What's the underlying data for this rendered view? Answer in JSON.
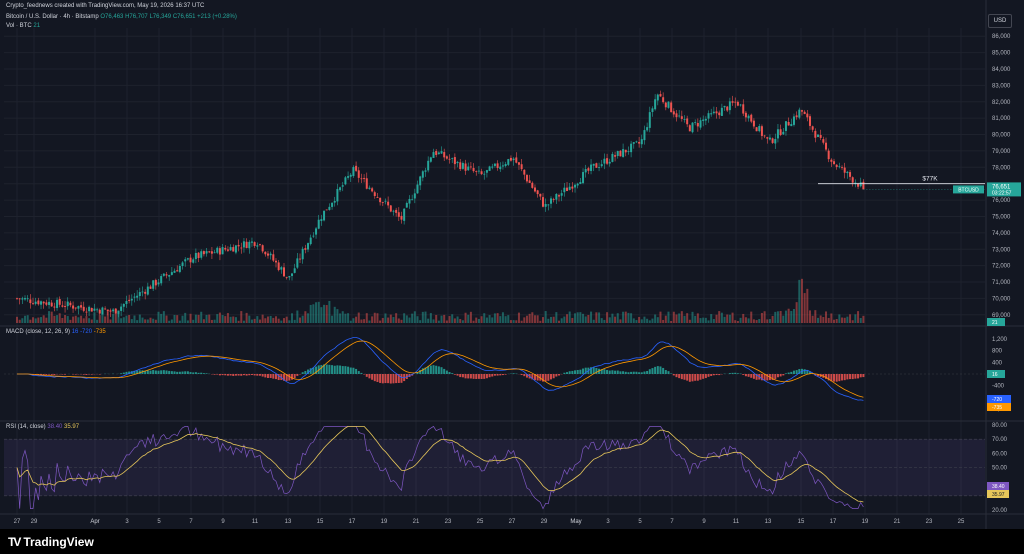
{
  "header": {
    "creator": "Crypto_feednews created with TradingView.com, May 19, 2026 16:37 UTC",
    "symbol": "Bitcoin / U.S. Dollar · 4h · Bitstamp",
    "o": "O76,463",
    "h": "H76,707",
    "l": "L76,349",
    "c": "C76,651",
    "chg": "+213 (+0.28%)",
    "vol_label": "Vol · BTC",
    "vol_value": "21"
  },
  "currency_badge": "USD",
  "price_axis": {
    "ticks": [
      86000,
      85000,
      84000,
      83000,
      82000,
      81000,
      80000,
      79000,
      78000,
      77000,
      76000,
      75000,
      74000,
      73000,
      72000,
      71000,
      70000,
      69000
    ]
  },
  "price_labels": [
    "86,000",
    "85,000",
    "84,000",
    "83,000",
    "82,000",
    "81,000",
    "80,000",
    "79,000",
    "78,000",
    "77,000",
    "76,000",
    "75,000",
    "74,000",
    "73,000",
    "72,000",
    "71,000",
    "70,000",
    "69,000"
  ],
  "annotation": {
    "text": "$77K",
    "price": 77000
  },
  "last_price": {
    "symbol": "BTCUSD",
    "price": "76,651",
    "countdown": "03:22:57",
    "value": 76651
  },
  "volume_badge": "21",
  "macd": {
    "label": "MACD (close, 12, 26, 9)",
    "v1": "16",
    "v2": "-720",
    "v3": "-735",
    "ticks": [
      "1,200",
      "800",
      "400",
      "-400",
      "-1,200"
    ],
    "hist_badge": "16",
    "macd_badge": "-720",
    "signal_badge": "-735"
  },
  "rsi": {
    "label": "RSI (14, close)",
    "v1": "38.40",
    "v2": "35.97",
    "ticks": [
      "80.00",
      "70.00",
      "60.00",
      "50.00",
      "40.00",
      "30.00",
      "20.00"
    ],
    "rsi_badge": "38.40",
    "ma_badge": "35.97"
  },
  "time_axis": [
    "27",
    "29",
    "Apr",
    "3",
    "5",
    "7",
    "9",
    "11",
    "13",
    "15",
    "17",
    "19",
    "21",
    "23",
    "25",
    "27",
    "29",
    "May",
    "3",
    "5",
    "7",
    "9",
    "11",
    "13",
    "15",
    "17",
    "19",
    "21",
    "23",
    "25"
  ],
  "footer": {
    "brand": "TradingView"
  },
  "colors": {
    "up": "#26a69a",
    "down": "#ef5350",
    "macd_line": "#2962ff",
    "signal_line": "#ff9800",
    "rsi_line": "#7e57c2",
    "rsi_ma": "#e6c65a"
  },
  "chart_data": {
    "type": "candlestick",
    "timeframe": "4h",
    "price_key_points": [
      {
        "date": "Mar 27",
        "price": 70000
      },
      {
        "date": "Apr 2",
        "price": 69200
      },
      {
        "date": "Apr 7",
        "price": 72500
      },
      {
        "date": "Apr 11",
        "price": 73500
      },
      {
        "date": "Apr 13",
        "price": 71200
      },
      {
        "date": "Apr 15",
        "price": 75000
      },
      {
        "date": "Apr 17",
        "price": 77800
      },
      {
        "date": "Apr 20",
        "price": 74800
      },
      {
        "date": "Apr 22",
        "price": 79000
      },
      {
        "date": "Apr 25",
        "price": 77500
      },
      {
        "date": "Apr 27",
        "price": 78600
      },
      {
        "date": "Apr 29",
        "price": 75600
      },
      {
        "date": "May 2",
        "price": 78000
      },
      {
        "date": "May 5",
        "price": 79500
      },
      {
        "date": "May 6",
        "price": 82500
      },
      {
        "date": "May 8",
        "price": 80400
      },
      {
        "date": "May 11",
        "price": 82000
      },
      {
        "date": "May 13",
        "price": 79500
      },
      {
        "date": "May 15",
        "price": 81500
      },
      {
        "date": "May 17",
        "price": 78300
      },
      {
        "date": "May 19",
        "price": 76651
      }
    ],
    "ylim": [
      68500,
      86500
    ],
    "macd_ylim": [
      -1300,
      1300
    ],
    "rsi_ylim": [
      20,
      80
    ],
    "volume_spikes": [
      {
        "date": "Apr 15",
        "level": "high"
      },
      {
        "date": "May 15",
        "level": "highest"
      }
    ]
  }
}
